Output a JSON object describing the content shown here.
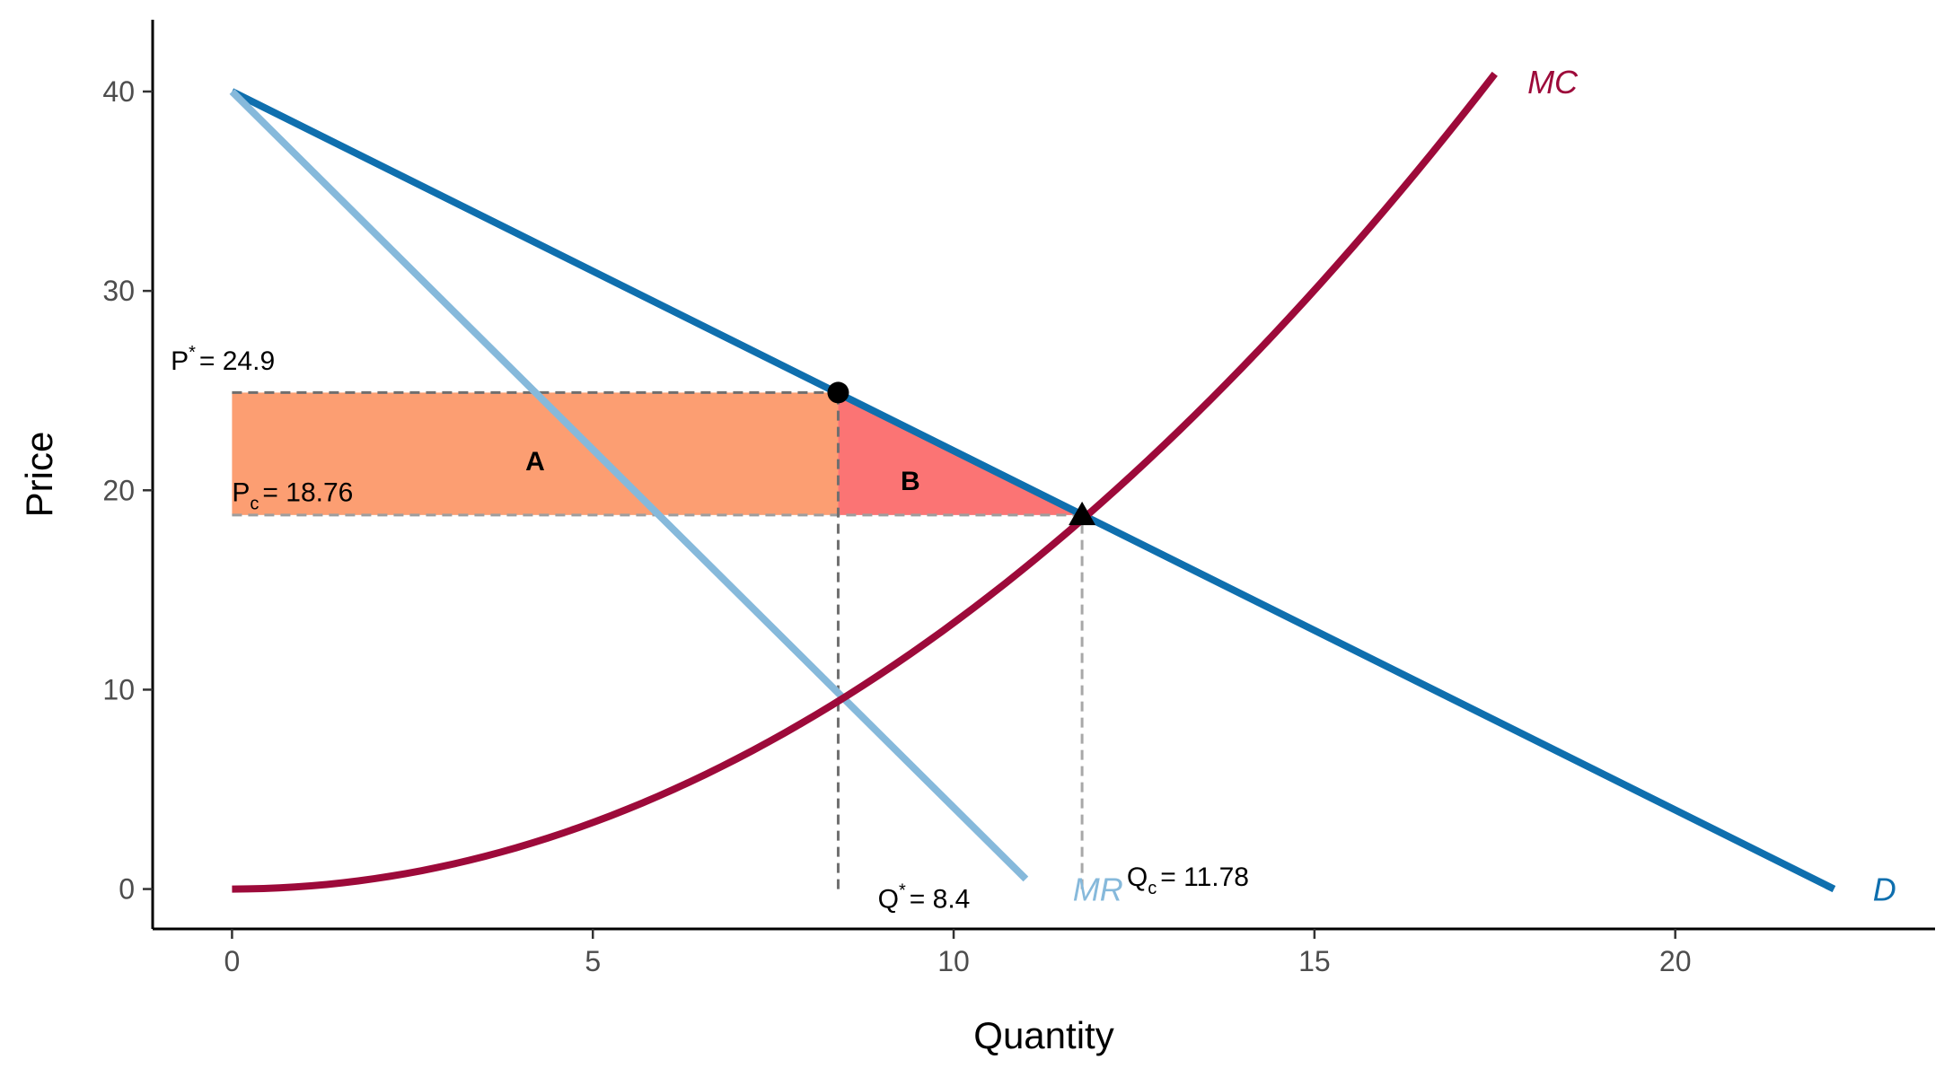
{
  "chart_data": {
    "type": "line",
    "title": "",
    "xlabel": "Quantity",
    "ylabel": "Price",
    "xlim": [
      -1.1,
      23.6
    ],
    "ylim": [
      -2.0,
      43.6
    ],
    "grid": false,
    "x_ticks": [
      0,
      5,
      10,
      15,
      20
    ],
    "y_ticks": [
      0,
      10,
      20,
      30,
      40
    ],
    "series": [
      {
        "name": "D",
        "kind": "linear",
        "color": "#0F6FAE",
        "label_color": "#0F6FAE",
        "x": [
          0,
          22.2
        ],
        "y": [
          40,
          0
        ],
        "label_at": {
          "x": 22.9,
          "y": 0
        }
      },
      {
        "name": "MR",
        "kind": "linear",
        "color": "#86B9DB",
        "label_color": "#86B9DB",
        "x": [
          0,
          11
        ],
        "y": [
          40,
          0.5
        ],
        "label_at": {
          "x": 12.0,
          "y": 0
        }
      },
      {
        "name": "MC",
        "kind": "quadratic",
        "color": "#9D0A3A",
        "label_color": "#9D0A3A",
        "coef": 0.1335,
        "x_range": [
          0,
          17.5
        ],
        "label_at": {
          "x": 18.3,
          "y": 40.5
        }
      }
    ],
    "regions": [
      {
        "name": "A",
        "type": "rect",
        "color": "#FC8D59",
        "opacity": 0.85,
        "x": [
          0,
          8.4
        ],
        "y": [
          18.76,
          24.9
        ],
        "label_at": {
          "x": 4.2,
          "y": 21.5
        }
      },
      {
        "name": "B",
        "type": "triangle",
        "color": "#FA5C5C",
        "opacity": 0.85,
        "points": [
          [
            8.4,
            24.9
          ],
          [
            8.4,
            18.76
          ],
          [
            11.78,
            18.76
          ]
        ],
        "label_at": {
          "x": 9.4,
          "y": 20.5
        }
      }
    ],
    "reference_lines": [
      {
        "from": [
          0,
          24.9
        ],
        "to": [
          8.4,
          24.9
        ],
        "color": "#6f6f6f"
      },
      {
        "from": [
          0,
          18.76
        ],
        "to": [
          11.78,
          18.76
        ],
        "color": "#9e9e9e"
      },
      {
        "from": [
          8.4,
          0
        ],
        "to": [
          8.4,
          24.9
        ],
        "color": "#6f6f6f"
      },
      {
        "from": [
          11.78,
          0
        ],
        "to": [
          11.78,
          18.76
        ],
        "color": "#a8a8a8"
      }
    ],
    "points": [
      {
        "name": "monopoly",
        "shape": "circle",
        "x": 8.4,
        "y": 24.9
      },
      {
        "name": "competitive",
        "shape": "triangle",
        "x": 11.78,
        "y": 18.76
      }
    ],
    "annotations": [
      {
        "id": "p-star",
        "base": "P",
        "sup": "*",
        "sub": "",
        "value": "= 24.9",
        "x": -0.85,
        "y": 26.5,
        "color": "#000000"
      },
      {
        "id": "p-c",
        "base": "P",
        "sup": "",
        "sub": "c",
        "value": "= 18.76",
        "x": 0.0,
        "y": 19.9,
        "color": "#C46A3E"
      },
      {
        "id": "q-star",
        "base": "Q",
        "sup": "*",
        "sub": "",
        "value": "= 8.4",
        "x": 8.95,
        "y": -0.5,
        "color": "#000000"
      },
      {
        "id": "q-c",
        "base": "Q",
        "sup": "",
        "sub": "c",
        "value": "= 11.78",
        "x": 12.4,
        "y": 0.6,
        "color": "#000000"
      }
    ]
  }
}
